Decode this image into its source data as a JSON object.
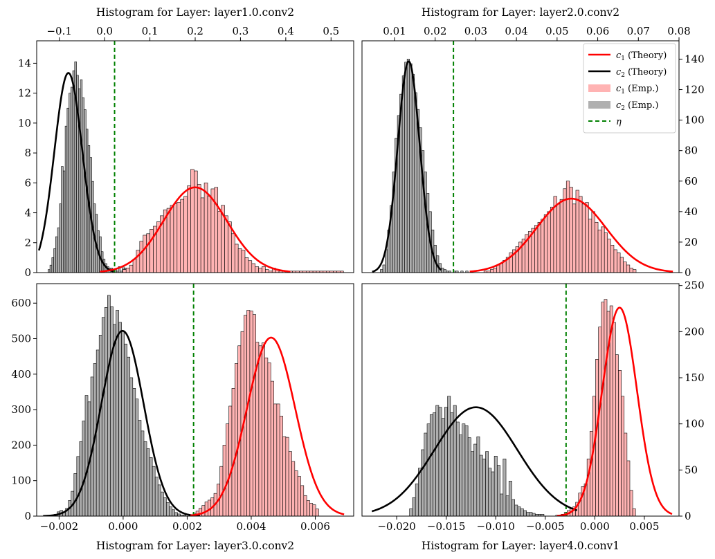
{
  "figure": {
    "legend": {
      "location": "upper right of panel 2",
      "entries": [
        {
          "symbol": "line",
          "color": "#ff0000",
          "math": "c",
          "sub": "1",
          "label": "(Theory)"
        },
        {
          "symbol": "line",
          "color": "#000000",
          "math": "c",
          "sub": "2",
          "label": "(Theory)"
        },
        {
          "symbol": "patch",
          "color": "#ffb3b3",
          "math": "c",
          "sub": "1",
          "label": "(Emp.)"
        },
        {
          "symbol": "patch",
          "color": "#b0b0b0",
          "math": "c",
          "sub": "2",
          "label": "(Emp.)"
        },
        {
          "symbol": "dashed",
          "color": "#008000",
          "math": "η",
          "sub": "",
          "label": ""
        }
      ]
    }
  },
  "chart_data": [
    {
      "type": "histogram",
      "title": "Histogram for Layer: layer1.0.conv2",
      "title_position": "top",
      "xaxis_position": "top",
      "yaxis_position": "left",
      "xlim": [
        -0.15,
        0.55
      ],
      "ylim": [
        0,
        15.5
      ],
      "xticks": [
        -0.1,
        0.0,
        0.1,
        0.2,
        0.3,
        0.4,
        0.5
      ],
      "xtick_labels": [
        "−0.1",
        "0.0",
        "0.1",
        "0.2",
        "0.3",
        "0.4",
        "0.5"
      ],
      "yticks": [
        0,
        2,
        4,
        6,
        8,
        10,
        12,
        14
      ],
      "ytick_labels": [
        "0",
        "2",
        "4",
        "6",
        "8",
        "10",
        "12",
        "14"
      ],
      "eta": 0.022,
      "series": [
        {
          "name": "c2 (Emp.)",
          "kind": "bars",
          "color": "#a0a0a0",
          "bin_start": -0.125,
          "bin_width": 0.0042,
          "values": [
            0.2,
            0.5,
            1.0,
            1.6,
            2.4,
            3.0,
            4.6,
            7.1,
            6.8,
            9.8,
            11.0,
            12.0,
            12.4,
            13.5,
            14.1,
            13.2,
            12.3,
            12.9,
            11.7,
            10.9,
            9.6,
            8.5,
            7.7,
            6.1,
            4.6,
            3.9,
            2.8,
            2.4,
            1.4,
            0.9,
            0.6,
            0.4,
            0.3,
            0.3,
            0.1,
            0.2,
            0.1,
            0.4,
            0.1,
            0.4,
            0.3
          ]
        },
        {
          "name": "c1 (Emp.)",
          "kind": "bars",
          "color": "#ffb3b3",
          "bin_start": 0.04,
          "bin_width": 0.0075,
          "values": [
            0.2,
            0.3,
            0.5,
            0.9,
            1.5,
            2.1,
            2.5,
            2.6,
            2.9,
            3.1,
            3.4,
            3.8,
            4.2,
            4.3,
            4.5,
            4.6,
            4.7,
            4.9,
            5.1,
            5.8,
            6.9,
            6.8,
            5.9,
            5.0,
            6.0,
            5.1,
            5.6,
            5.7,
            4.1,
            4.5,
            3.8,
            3.4,
            2.6,
            1.9,
            1.6,
            1.5,
            1.0,
            0.8,
            0.6,
            0.4,
            0.3,
            0.4,
            0.2,
            0.1,
            0.3,
            0.2,
            0.1,
            0.1,
            0.1,
            0.1,
            0.1,
            0.1,
            0.1,
            0.1,
            0.1,
            0.1,
            0.1,
            0.1,
            0.1,
            0.1,
            0.1,
            0.1,
            0.1,
            0.1,
            0.1
          ]
        },
        {
          "name": "c2 (Theory)",
          "kind": "gaussian",
          "color": "#000000",
          "mean": -0.08,
          "sd": 0.031,
          "peak": 13.35,
          "x_range": [
            -0.145,
            0.02
          ]
        },
        {
          "name": "c1 (Theory)",
          "kind": "gaussian",
          "color": "#ff0000",
          "mean": 0.2,
          "sd": 0.07,
          "peak": 5.7,
          "x_range": [
            -0.01,
            0.41
          ]
        }
      ]
    },
    {
      "type": "histogram",
      "title": "Histogram for Layer: layer2.0.conv2",
      "title_position": "top",
      "xaxis_position": "top",
      "yaxis_position": "right",
      "xlim": [
        0.002,
        0.08
      ],
      "ylim": [
        0,
        152
      ],
      "xticks": [
        0.01,
        0.02,
        0.03,
        0.04,
        0.05,
        0.06,
        0.07,
        0.08
      ],
      "xtick_labels": [
        "0.01",
        "0.02",
        "0.03",
        "0.04",
        "0.05",
        "0.06",
        "0.07",
        "0.08"
      ],
      "yticks": [
        0,
        20,
        40,
        60,
        80,
        100,
        120,
        140
      ],
      "ytick_labels": [
        "0",
        "20",
        "40",
        "60",
        "80",
        "100",
        "120",
        "140"
      ],
      "eta": 0.0245,
      "series": [
        {
          "name": "c2 (Emp.)",
          "kind": "bars",
          "color": "#a0a0a0",
          "bin_start": 0.0065,
          "bin_width": 0.0006,
          "values": [
            2,
            5,
            15,
            28,
            44,
            66,
            88,
            103,
            117,
            129,
            138,
            140,
            137,
            130,
            118,
            107,
            95,
            80,
            66,
            52,
            40,
            28,
            18,
            11,
            6,
            3,
            2,
            1,
            1,
            0,
            1,
            1,
            0,
            1,
            0,
            1
          ]
        },
        {
          "name": "c1 (Emp.)",
          "kind": "bars",
          "color": "#ffb3b3",
          "bin_start": 0.032,
          "bin_width": 0.00078,
          "values": [
            1,
            1,
            2,
            3,
            5,
            6,
            8,
            10,
            13,
            15,
            17,
            20,
            22,
            25,
            27,
            29,
            31,
            33,
            35,
            38,
            40,
            43,
            50,
            45,
            48,
            55,
            60,
            56,
            45,
            54,
            50,
            45,
            46,
            35,
            40,
            33,
            28,
            30,
            26,
            22,
            18,
            15,
            13,
            10,
            7,
            5,
            3,
            2
          ]
        },
        {
          "name": "c2 (Theory)",
          "kind": "gaussian",
          "color": "#000000",
          "mean": 0.0135,
          "sd": 0.0027,
          "peak": 138.5,
          "x_range": [
            0.0045,
            0.0215
          ]
        },
        {
          "name": "c1 (Theory)",
          "kind": "gaussian",
          "color": "#ff0000",
          "mean": 0.0535,
          "sd": 0.0085,
          "peak": 48.5,
          "x_range": [
            0.0285,
            0.0785
          ]
        }
      ]
    },
    {
      "type": "histogram",
      "title": "Histogram for Layer: layer3.0.conv2",
      "title_position": "bottom",
      "xaxis_position": "bottom",
      "yaxis_position": "left",
      "xlim": [
        -0.0027,
        0.0072
      ],
      "ylim": [
        0,
        655
      ],
      "xticks": [
        -0.002,
        0.0,
        0.002,
        0.004,
        0.006
      ],
      "xtick_labels": [
        "−0.002",
        "0.000",
        "0.002",
        "0.004",
        "0.006"
      ],
      "yticks": [
        0,
        100,
        200,
        300,
        400,
        500,
        600
      ],
      "ytick_labels": [
        "0",
        "100",
        "200",
        "300",
        "400",
        "500",
        "600"
      ],
      "eta": 0.0022,
      "series": [
        {
          "name": "c2 (Emp.)",
          "kind": "bars",
          "color": "#a0a0a0",
          "bin_start": -0.00215,
          "bin_width": 8.75e-05,
          "values": [
            5,
            12,
            16,
            10,
            22,
            44,
            70,
            120,
            168,
            210,
            268,
            340,
            322,
            392,
            430,
            468,
            510,
            560,
            588,
            622,
            590,
            540,
            580,
            546,
            520,
            485,
            448,
            390,
            360,
            330,
            270,
            240,
            210,
            190,
            165,
            140,
            110,
            88,
            68,
            52,
            38,
            26,
            18,
            10,
            6,
            3,
            3
          ]
        },
        {
          "name": "c1 (Emp.)",
          "kind": "bars",
          "color": "#ffb3b3",
          "bin_start": 0.00218,
          "bin_width": 9.35e-05,
          "values": [
            8,
            14,
            22,
            30,
            40,
            45,
            52,
            64,
            90,
            140,
            200,
            260,
            310,
            360,
            430,
            480,
            520,
            566,
            580,
            578,
            568,
            490,
            480,
            488,
            446,
            432,
            380,
            316,
            316,
            282,
            224,
            222,
            182,
            154,
            128,
            112,
            86,
            58,
            44,
            36,
            32,
            20
          ]
        },
        {
          "name": "c2 (Theory)",
          "kind": "gaussian",
          "color": "#000000",
          "mean": -2e-05,
          "sd": 0.00066,
          "peak": 522,
          "x_range": [
            -0.0025,
            0.0024
          ]
        },
        {
          "name": "c1 (Theory)",
          "kind": "gaussian",
          "color": "#ff0000",
          "mean": 0.00462,
          "sd": 0.00075,
          "peak": 503,
          "x_range": [
            0.0021,
            0.0069
          ]
        }
      ]
    },
    {
      "type": "histogram",
      "title": "Histogram for Layer: layer4.0.conv1",
      "title_position": "bottom",
      "xaxis_position": "bottom",
      "yaxis_position": "right",
      "xlim": [
        -0.0235,
        0.0085
      ],
      "ylim": [
        0,
        252
      ],
      "xticks": [
        -0.02,
        -0.015,
        -0.01,
        -0.005,
        0.0,
        0.005
      ],
      "xtick_labels": [
        "−0.020",
        "−0.015",
        "−0.010",
        "−0.005",
        "0.000",
        "0.005"
      ],
      "yticks": [
        0,
        50,
        100,
        150,
        200,
        250
      ],
      "ytick_labels": [
        "0",
        "50",
        "100",
        "150",
        "200",
        "250"
      ],
      "eta": -0.0029,
      "series": [
        {
          "name": "c2 (Emp.)",
          "kind": "bars",
          "color": "#a0a0a0",
          "bin_start": -0.0187,
          "bin_width": 0.000295,
          "values": [
            8,
            20,
            35,
            52,
            72,
            90,
            100,
            110,
            112,
            120,
            118,
            106,
            118,
            130,
            112,
            120,
            102,
            88,
            100,
            98,
            85,
            70,
            78,
            86,
            66,
            62,
            70,
            52,
            48,
            65,
            55,
            24,
            62,
            22,
            38,
            18,
            12,
            10,
            8,
            6,
            4,
            4,
            3,
            2,
            2,
            2
          ]
        },
        {
          "name": "c1 (Emp.)",
          "kind": "bars",
          "color": "#ffb3b3",
          "bin_start": -0.00395,
          "bin_width": 0.000288,
          "values": [
            1,
            1,
            2,
            4,
            6,
            8,
            10,
            15,
            25,
            32,
            35,
            62,
            92,
            130,
            170,
            205,
            232,
            235,
            222,
            228,
            210,
            175,
            158,
            130,
            90,
            60,
            28,
            8
          ]
        },
        {
          "name": "c2 (Theory)",
          "kind": "gaussian",
          "color": "#000000",
          "mean": -0.012,
          "sd": 0.0042,
          "peak": 118,
          "x_range": [
            -0.0225,
            -0.0018
          ]
        },
        {
          "name": "c1 (Theory)",
          "kind": "gaussian",
          "color": "#ff0000",
          "mean": 0.0025,
          "sd": 0.00175,
          "peak": 226,
          "x_range": [
            -0.0038,
            0.0078
          ]
        }
      ]
    }
  ]
}
